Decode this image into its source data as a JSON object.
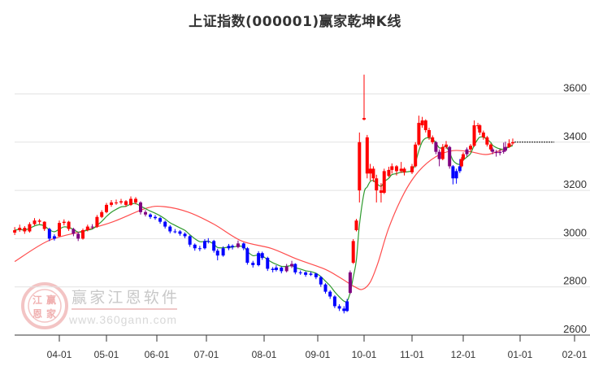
{
  "chart_data": {
    "type": "candlestick",
    "title": "上证指数(000001)赢家乾坤K线",
    "ylim": [
      2600,
      3700
    ],
    "y_ticks": [
      "3600",
      "3400",
      "3200",
      "3000",
      "2800",
      "2600"
    ],
    "x_ticks": [
      "04-01",
      "05-01",
      "06-01",
      "07-01",
      "08-01",
      "09-01",
      "10-01",
      "11-01",
      "12-01",
      "01-01",
      "02-01"
    ],
    "grid": true,
    "colors": {
      "up_above": "#ff0000",
      "below": "#0000ff",
      "between": "#800080",
      "ma_fast": "#2e9a2e",
      "ma_slow": "#ff4d4d",
      "last_price_line": "#000000"
    },
    "candle_fields": [
      "date",
      "open",
      "high",
      "low",
      "close",
      "color"
    ],
    "candles": [
      [
        "03-05",
        3025,
        3048,
        3015,
        3035,
        "r"
      ],
      [
        "03-08",
        3035,
        3058,
        3028,
        3045,
        "r"
      ],
      [
        "03-11",
        3045,
        3052,
        3020,
        3030,
        "r"
      ],
      [
        "03-14",
        3030,
        3068,
        3025,
        3060,
        "r"
      ],
      [
        "03-17",
        3060,
        3085,
        3055,
        3075,
        "r"
      ],
      [
        "03-20",
        3075,
        3082,
        3060,
        3070,
        "r"
      ],
      [
        "03-23",
        3070,
        3072,
        3032,
        3040,
        "r"
      ],
      [
        "03-26",
        3040,
        3045,
        2990,
        3000,
        "b"
      ],
      [
        "03-29",
        3000,
        3018,
        2992,
        3010,
        "b"
      ],
      [
        "04-01",
        3010,
        3075,
        3008,
        3065,
        "r"
      ],
      [
        "04-04",
        3065,
        3080,
        3055,
        3070,
        "r"
      ],
      [
        "04-07",
        3070,
        3074,
        3032,
        3040,
        "r"
      ],
      [
        "04-10",
        3040,
        3045,
        3010,
        3020,
        "p"
      ],
      [
        "04-13",
        3020,
        3028,
        2990,
        3000,
        "p"
      ],
      [
        "04-16",
        3000,
        3042,
        2996,
        3035,
        "r"
      ],
      [
        "04-19",
        3035,
        3058,
        3030,
        3050,
        "r"
      ],
      [
        "04-22",
        3050,
        3060,
        3040,
        3050,
        "p"
      ],
      [
        "04-25",
        3050,
        3098,
        3045,
        3090,
        "r"
      ],
      [
        "04-28",
        3090,
        3118,
        3085,
        3110,
        "r"
      ],
      [
        "05-01",
        3110,
        3148,
        3105,
        3140,
        "r"
      ],
      [
        "05-04",
        3140,
        3160,
        3132,
        3150,
        "r"
      ],
      [
        "05-07",
        3150,
        3162,
        3140,
        3150,
        "r"
      ],
      [
        "05-10",
        3150,
        3165,
        3142,
        3155,
        "r"
      ],
      [
        "05-13",
        3155,
        3160,
        3132,
        3140,
        "r"
      ],
      [
        "05-16",
        3140,
        3175,
        3136,
        3165,
        "r"
      ],
      [
        "05-19",
        3165,
        3172,
        3142,
        3150,
        "r"
      ],
      [
        "05-22",
        3150,
        3155,
        3100,
        3110,
        "p"
      ],
      [
        "05-25",
        3110,
        3118,
        3092,
        3100,
        "p"
      ],
      [
        "05-28",
        3100,
        3105,
        3082,
        3090,
        "b"
      ],
      [
        "05-31",
        3090,
        3098,
        3078,
        3085,
        "b"
      ],
      [
        "06-03",
        3085,
        3090,
        3062,
        3070,
        "b"
      ],
      [
        "06-06",
        3070,
        3075,
        3042,
        3050,
        "b"
      ],
      [
        "06-09",
        3050,
        3056,
        3022,
        3030,
        "b"
      ],
      [
        "06-12",
        3030,
        3040,
        3022,
        3030,
        "b"
      ],
      [
        "06-15",
        3030,
        3035,
        3012,
        3020,
        "b"
      ],
      [
        "06-18",
        3020,
        3026,
        3002,
        3010,
        "b"
      ],
      [
        "06-21",
        3010,
        3014,
        2966,
        2975,
        "b"
      ],
      [
        "06-24",
        2975,
        2980,
        2950,
        2960,
        "b"
      ],
      [
        "06-27",
        2960,
        2970,
        2948,
        2960,
        "b"
      ],
      [
        "06-30",
        2960,
        2998,
        2955,
        2990,
        "b"
      ],
      [
        "07-02",
        2990,
        3002,
        2980,
        2990,
        "b"
      ],
      [
        "07-05",
        2990,
        2995,
        2942,
        2950,
        "b"
      ],
      [
        "07-07",
        2950,
        2958,
        2910,
        2930,
        "b"
      ],
      [
        "07-10",
        2930,
        2968,
        2925,
        2960,
        "b"
      ],
      [
        "07-13",
        2960,
        2978,
        2952,
        2970,
        "b"
      ],
      [
        "07-15",
        2970,
        2976,
        2955,
        2965,
        "b"
      ],
      [
        "07-18",
        2965,
        2992,
        2960,
        2980,
        "p"
      ],
      [
        "07-21",
        2980,
        2984,
        2952,
        2960,
        "b"
      ],
      [
        "07-23",
        2960,
        2965,
        2892,
        2900,
        "b"
      ],
      [
        "07-26",
        2900,
        2908,
        2880,
        2890,
        "b"
      ],
      [
        "07-29",
        2890,
        2948,
        2885,
        2940,
        "b"
      ],
      [
        "07-31",
        2940,
        2946,
        2912,
        2920,
        "b"
      ],
      [
        "08-03",
        2920,
        2925,
        2866,
        2875,
        "b"
      ],
      [
        "08-06",
        2875,
        2882,
        2860,
        2870,
        "b"
      ],
      [
        "08-08",
        2870,
        2890,
        2864,
        2880,
        "b"
      ],
      [
        "08-11",
        2880,
        2884,
        2856,
        2865,
        "b"
      ],
      [
        "08-14",
        2865,
        2895,
        2860,
        2885,
        "p"
      ],
      [
        "08-17",
        2885,
        2908,
        2878,
        2895,
        "p"
      ],
      [
        "08-19",
        2895,
        2898,
        2852,
        2860,
        "b"
      ],
      [
        "08-22",
        2860,
        2868,
        2850,
        2860,
        "b"
      ],
      [
        "08-25",
        2860,
        2864,
        2842,
        2850,
        "b"
      ],
      [
        "08-28",
        2850,
        2862,
        2845,
        2855,
        "b"
      ],
      [
        "08-31",
        2855,
        2858,
        2832,
        2840,
        "b"
      ],
      [
        "09-03",
        2840,
        2845,
        2800,
        2810,
        "b"
      ],
      [
        "09-06",
        2810,
        2815,
        2772,
        2780,
        "b"
      ],
      [
        "09-09",
        2780,
        2786,
        2750,
        2760,
        "b"
      ],
      [
        "09-12",
        2760,
        2765,
        2712,
        2720,
        "b"
      ],
      [
        "09-15",
        2720,
        2728,
        2700,
        2710,
        "b"
      ],
      [
        "09-18",
        2710,
        2720,
        2690,
        2700,
        "b"
      ],
      [
        "09-20",
        2700,
        2750,
        2696,
        2740,
        "b"
      ],
      [
        "09-22",
        2775,
        2868,
        2770,
        2860,
        "p"
      ],
      [
        "09-24",
        2900,
        2998,
        2895,
        2990,
        "r"
      ],
      [
        "09-26",
        3035,
        3082,
        3030,
        3075,
        "r"
      ],
      [
        "09-28",
        3200,
        3440,
        3150,
        3400,
        "r"
      ],
      [
        "10-01",
        3494,
        3680,
        3490,
        3500,
        "r"
      ],
      [
        "10-03",
        3420,
        3430,
        3250,
        3270,
        "r"
      ],
      [
        "10-05",
        3270,
        3310,
        3240,
        3290,
        "r"
      ],
      [
        "10-07",
        3290,
        3300,
        3235,
        3250,
        "r"
      ],
      [
        "10-09",
        3250,
        3265,
        3150,
        3200,
        "r"
      ],
      [
        "10-12",
        3200,
        3230,
        3150,
        3190,
        "r"
      ],
      [
        "10-14",
        3190,
        3290,
        3185,
        3280,
        "r"
      ],
      [
        "10-17",
        3260,
        3298,
        3255,
        3285,
        "r"
      ],
      [
        "10-19",
        3285,
        3312,
        3270,
        3300,
        "r"
      ],
      [
        "10-22",
        3300,
        3305,
        3262,
        3280,
        "r"
      ],
      [
        "10-25",
        3280,
        3318,
        3272,
        3290,
        "r"
      ],
      [
        "10-27",
        3290,
        3296,
        3262,
        3275,
        "r"
      ],
      [
        "11-01",
        3275,
        3310,
        3268,
        3300,
        "r"
      ],
      [
        "11-03",
        3300,
        3400,
        3295,
        3390,
        "r"
      ],
      [
        "11-05",
        3390,
        3510,
        3385,
        3480,
        "r"
      ],
      [
        "11-07",
        3470,
        3505,
        3460,
        3490,
        "r"
      ],
      [
        "11-09",
        3490,
        3495,
        3440,
        3450,
        "r"
      ],
      [
        "11-11",
        3450,
        3460,
        3410,
        3420,
        "r"
      ],
      [
        "11-13",
        3420,
        3428,
        3392,
        3400,
        "r"
      ],
      [
        "11-15",
        3400,
        3405,
        3350,
        3360,
        "p"
      ],
      [
        "11-17",
        3360,
        3370,
        3300,
        3330,
        "p"
      ],
      [
        "11-19",
        3330,
        3392,
        3325,
        3380,
        "r"
      ],
      [
        "11-21",
        3380,
        3405,
        3372,
        3390,
        "r"
      ],
      [
        "11-23",
        3380,
        3385,
        3290,
        3300,
        "p"
      ],
      [
        "11-25",
        3300,
        3305,
        3225,
        3250,
        "b"
      ],
      [
        "11-27",
        3250,
        3290,
        3228,
        3280,
        "b"
      ],
      [
        "11-29",
        3280,
        3330,
        3272,
        3300,
        "b"
      ],
      [
        "11-30",
        3300,
        3338,
        3295,
        3330,
        "r"
      ],
      [
        "12-01",
        3330,
        3358,
        3322,
        3350,
        "r"
      ],
      [
        "12-03",
        3350,
        3378,
        3340,
        3370,
        "p"
      ],
      [
        "12-05",
        3370,
        3392,
        3360,
        3385,
        "r"
      ],
      [
        "12-07",
        3385,
        3490,
        3380,
        3470,
        "r"
      ],
      [
        "12-09",
        3470,
        3480,
        3455,
        3470,
        "r"
      ],
      [
        "12-10",
        3470,
        3475,
        3430,
        3440,
        "r"
      ],
      [
        "12-12",
        3440,
        3448,
        3410,
        3420,
        "r"
      ],
      [
        "12-14",
        3420,
        3426,
        3382,
        3390,
        "r"
      ],
      [
        "12-16",
        3390,
        3395,
        3362,
        3370,
        "r"
      ],
      [
        "12-17",
        3370,
        3378,
        3350,
        3360,
        "p"
      ],
      [
        "12-19",
        3360,
        3368,
        3340,
        3355,
        "p"
      ],
      [
        "12-21",
        3355,
        3372,
        3345,
        3360,
        "p"
      ],
      [
        "12-23",
        3360,
        3398,
        3352,
        3365,
        "p"
      ],
      [
        "12-24",
        3365,
        3402,
        3360,
        3380,
        "p"
      ],
      [
        "12-26",
        3380,
        3412,
        3376,
        3395,
        "r"
      ],
      [
        "12-28",
        3395,
        3415,
        3390,
        3400,
        "r"
      ]
    ],
    "ma_slow": [
      [
        "03-05",
        2905
      ],
      [
        "03-25",
        2990
      ],
      [
        "04-15",
        3030
      ],
      [
        "05-05",
        3070
      ],
      [
        "05-25",
        3125
      ],
      [
        "06-05",
        3133
      ],
      [
        "06-20",
        3110
      ],
      [
        "07-05",
        3060
      ],
      [
        "07-20",
        2990
      ],
      [
        "08-05",
        2960
      ],
      [
        "08-20",
        2915
      ],
      [
        "09-05",
        2875
      ],
      [
        "09-15",
        2840
      ],
      [
        "09-25",
        2800
      ],
      [
        "09-30",
        2790
      ],
      [
        "10-05",
        2820
      ],
      [
        "10-10",
        2900
      ],
      [
        "10-17",
        3045
      ],
      [
        "10-27",
        3190
      ],
      [
        "11-05",
        3280
      ],
      [
        "11-15",
        3340
      ],
      [
        "11-25",
        3365
      ],
      [
        "12-05",
        3360
      ],
      [
        "12-15",
        3350
      ],
      [
        "12-28",
        3390
      ]
    ],
    "last_price": 3400
  },
  "watermark": {
    "brand": "赢家江恩软件",
    "url": "www.360gann.com",
    "seal": [
      "江",
      "赢",
      "恩",
      "家"
    ]
  }
}
